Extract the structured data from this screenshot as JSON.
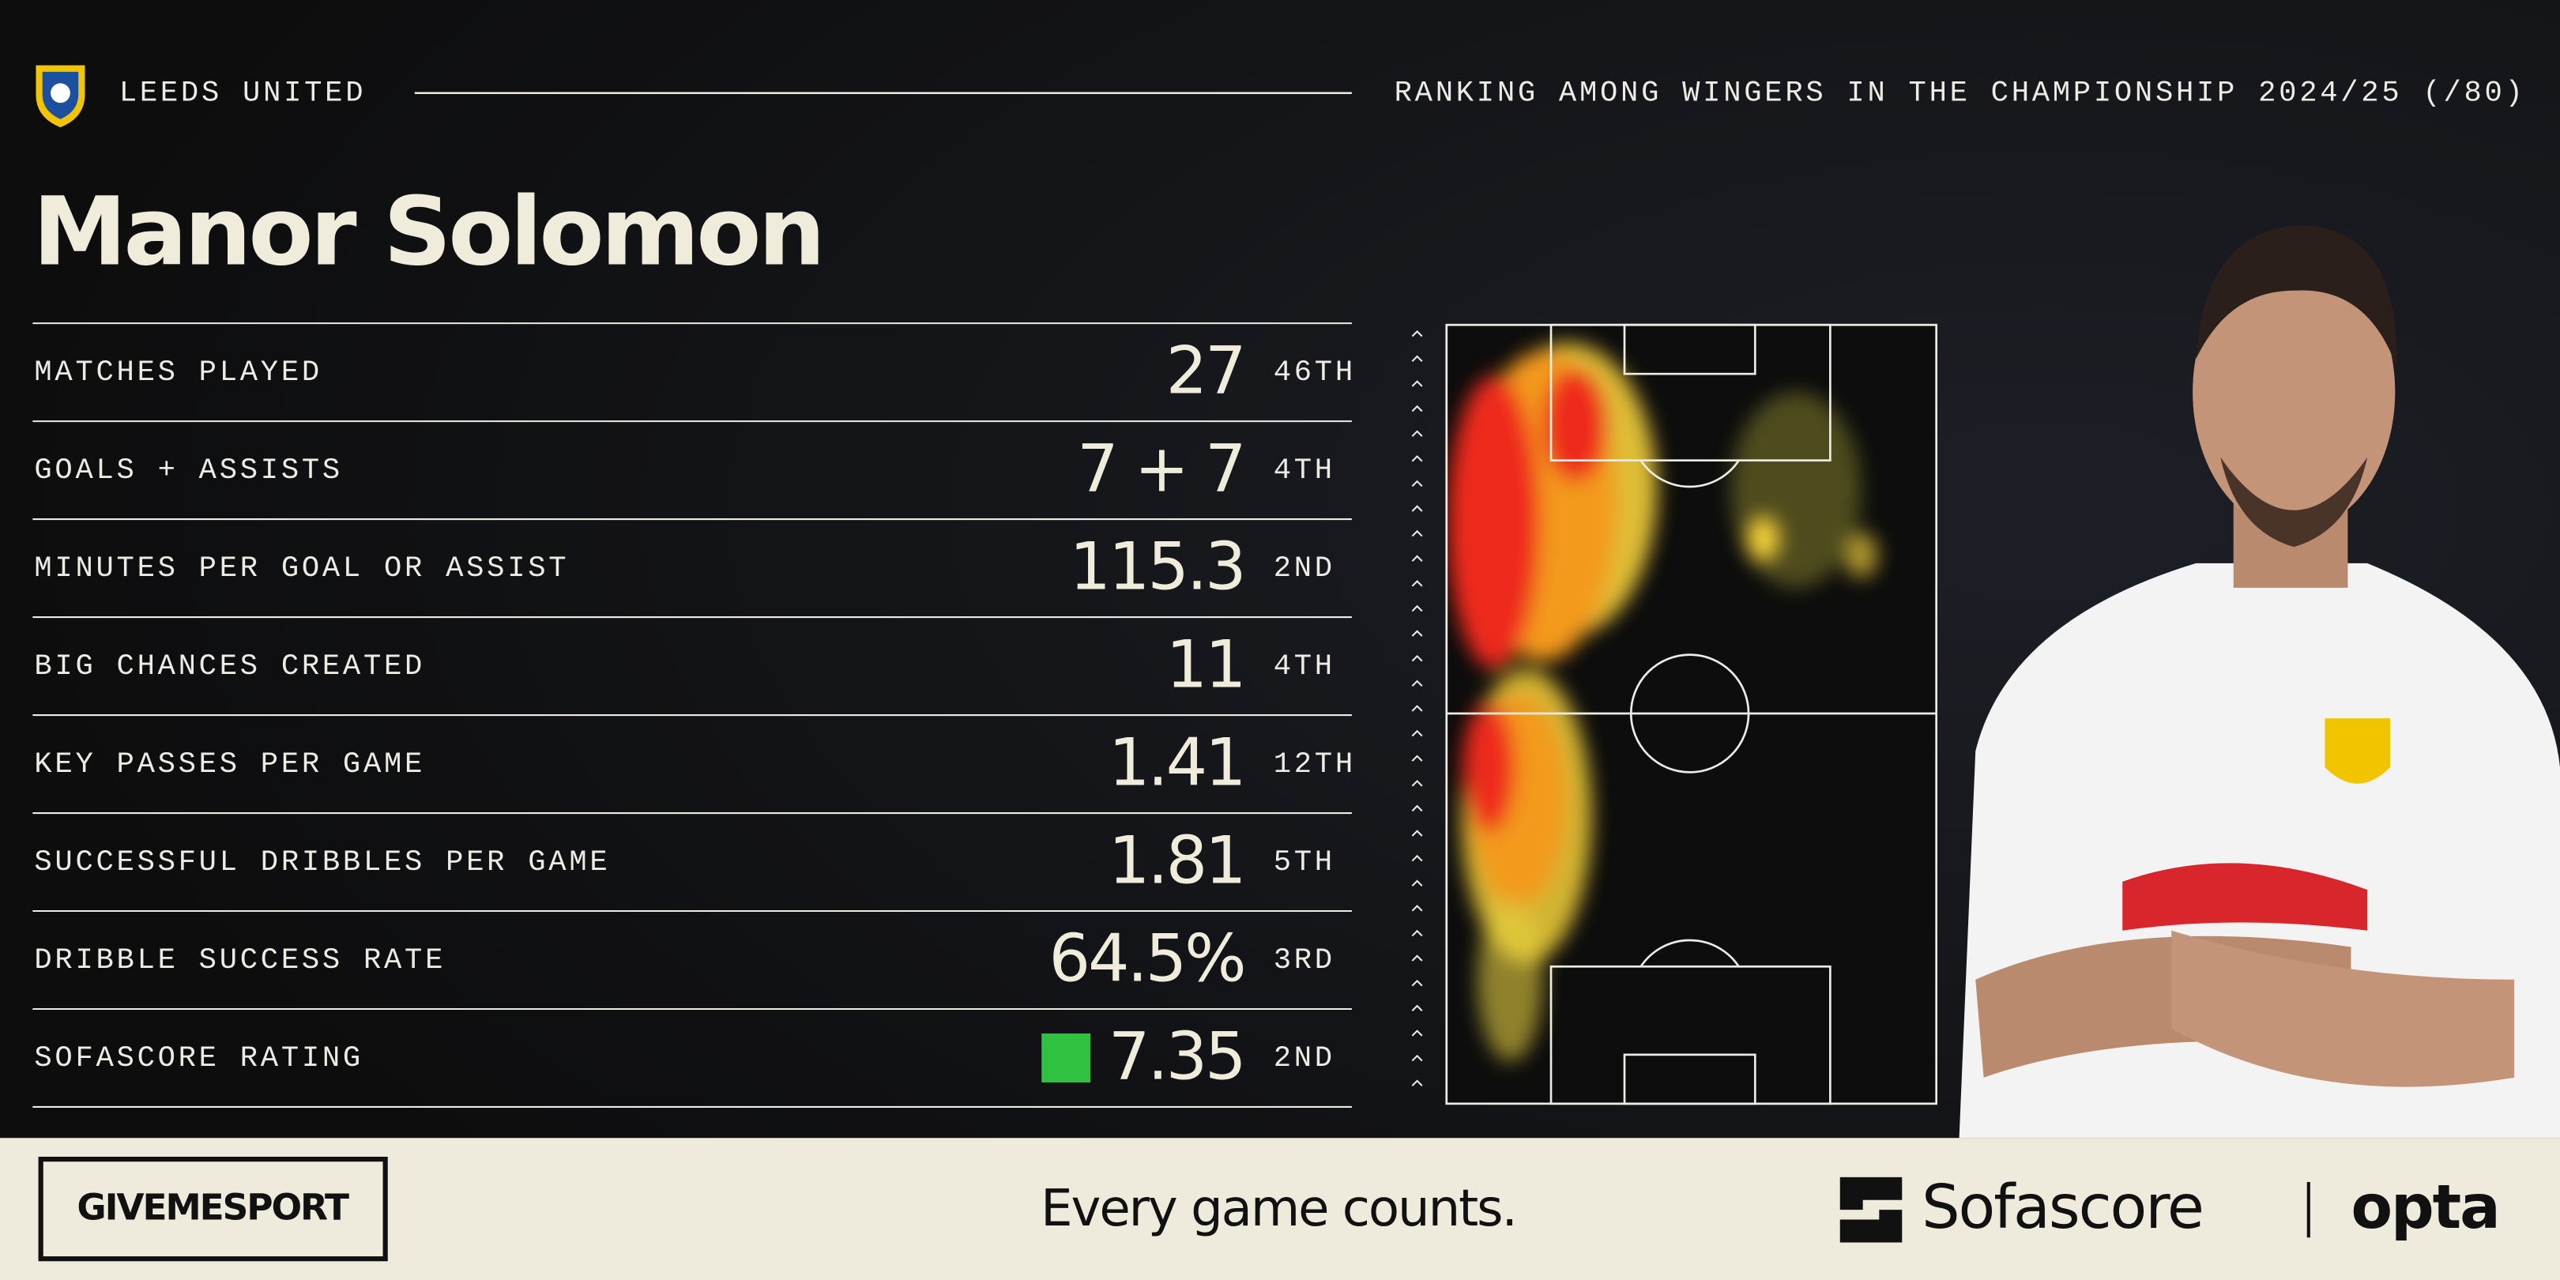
{
  "header": {
    "club": "LEEDS UNITED",
    "ranking_note": "RANKING AMONG WINGERS IN THE CHAMPIONSHIP 2024/25 (/80)"
  },
  "player": {
    "name": "Manor Solomon"
  },
  "stats": {
    "rows": [
      {
        "label": "MATCHES PLAYED",
        "value": "27",
        "rank": "46TH"
      },
      {
        "label": "GOALS + ASSISTS",
        "value": "7 + 7",
        "rank": "4TH"
      },
      {
        "label": "MINUTES PER GOAL OR ASSIST",
        "value": "115.3",
        "rank": "2ND"
      },
      {
        "label": "BIG CHANCES CREATED",
        "value": "11",
        "rank": "4TH"
      },
      {
        "label": "KEY PASSES PER GAME",
        "value": "1.41",
        "rank": "12TH"
      },
      {
        "label": "SUCCESSFUL DRIBBLES PER GAME",
        "value": "1.81",
        "rank": "5TH"
      },
      {
        "label": "DRIBBLE SUCCESS RATE",
        "value": "64.5%",
        "rank": "3RD"
      },
      {
        "label": "SOFASCORE RATING",
        "value": "7.35",
        "rank": "2ND"
      }
    ]
  },
  "footer": {
    "brand": "GIVEMESPORT",
    "tagline": "Every game counts.",
    "partner": "Sofascore",
    "provider": "opta"
  }
}
